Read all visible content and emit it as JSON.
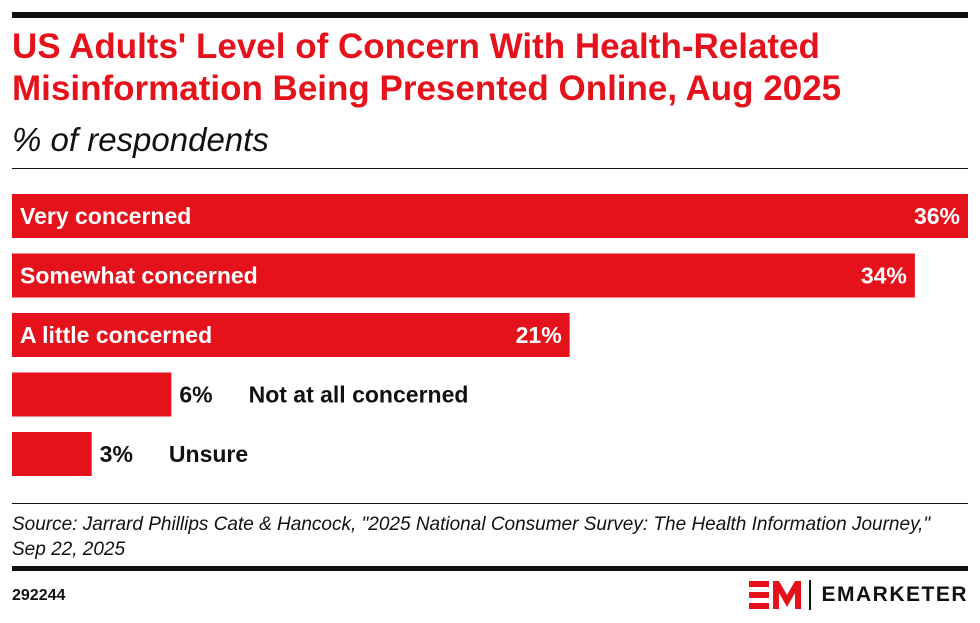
{
  "header": {
    "title": "US Adults' Level of Concern With Health-Related Misinformation Being Presented Online, Aug 2025",
    "subtitle": "% of respondents"
  },
  "footer": {
    "source": "Source: Jarrard Phillips Cate & Hancock, \"2025 National Consumer Survey: The Health Information Journey,\" Sep 22, 2025",
    "chart_id": "292244",
    "brand": "EMARKETER",
    "logo_colors": {
      "mark": "#e5121b",
      "text": "#111111"
    }
  },
  "chart_data": {
    "type": "bar",
    "orientation": "horizontal",
    "title": "US Adults' Level of Concern With Health-Related Misinformation Being Presented Online, Aug 2025",
    "subtitle": "% of respondents",
    "categories": [
      "Very concerned",
      "Somewhat concerned",
      "A little concerned",
      "Not at all concerned",
      "Unsure"
    ],
    "values": [
      36,
      34,
      21,
      6,
      3
    ],
    "value_labels": [
      "36%",
      "34%",
      "21%",
      "6%",
      "3%"
    ],
    "unit": "%",
    "xlim": [
      0,
      36
    ],
    "grid": false,
    "legend": "none",
    "bar_color": "#e5121b"
  }
}
